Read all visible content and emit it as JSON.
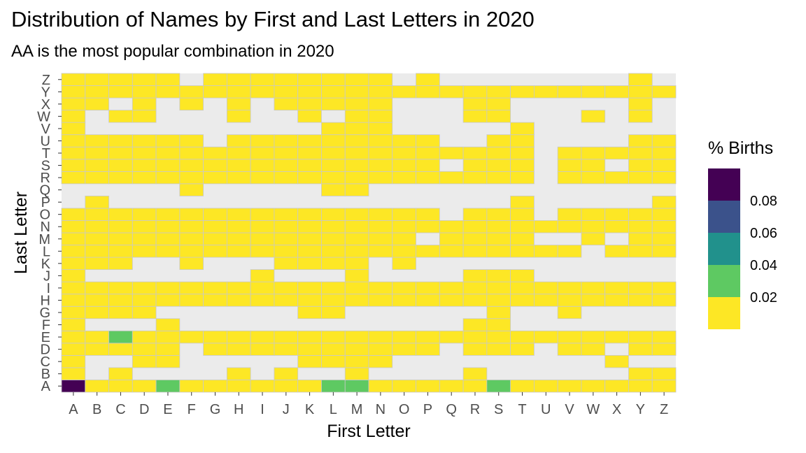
{
  "chart_data": {
    "type": "heatmap",
    "title": "Distribution of Names by First and Last Letters in 2020",
    "subtitle": "AA is the most popular combination in 2020",
    "xlabel": "First Letter",
    "ylabel": "Last Letter",
    "x_categories": [
      "A",
      "B",
      "C",
      "D",
      "E",
      "F",
      "G",
      "H",
      "I",
      "J",
      "K",
      "L",
      "M",
      "N",
      "O",
      "P",
      "Q",
      "R",
      "S",
      "T",
      "U",
      "V",
      "W",
      "X",
      "Y",
      "Z"
    ],
    "y_categories": [
      "A",
      "B",
      "C",
      "D",
      "E",
      "F",
      "G",
      "H",
      "I",
      "J",
      "K",
      "L",
      "M",
      "N",
      "O",
      "P",
      "Q",
      "R",
      "S",
      "T",
      "U",
      "V",
      "W",
      "X",
      "Y",
      "Z"
    ],
    "value_note": "Rows listed by last letter A..Z; columns by first letter A..Z; null = no data (grey panel shows through).",
    "rows": {
      "A": [
        0.095,
        0.01,
        0.01,
        0.01,
        0.025,
        0.01,
        0.01,
        0.01,
        0.01,
        0.01,
        0.01,
        0.025,
        0.025,
        0.01,
        0.01,
        0.01,
        0.01,
        0.01,
        0.025,
        0.01,
        0.01,
        0.01,
        0.01,
        0.01,
        0.01,
        0.01
      ],
      "B": [
        0.01,
        null,
        0.01,
        null,
        null,
        null,
        null,
        0.01,
        null,
        0.01,
        null,
        null,
        0.01,
        null,
        null,
        null,
        null,
        0.01,
        null,
        null,
        null,
        null,
        null,
        null,
        0.01,
        0.01
      ],
      "C": [
        0.01,
        null,
        null,
        0.01,
        0.01,
        null,
        null,
        null,
        null,
        null,
        0.01,
        0.01,
        0.01,
        0.01,
        null,
        null,
        null,
        null,
        null,
        null,
        null,
        null,
        null,
        0.01,
        null,
        null
      ],
      "D": [
        0.01,
        0.01,
        0.01,
        0.01,
        0.01,
        null,
        0.01,
        0.01,
        0.01,
        0.01,
        0.01,
        0.01,
        0.01,
        0.01,
        0.01,
        0.01,
        null,
        0.01,
        0.01,
        0.01,
        null,
        0.01,
        0.01,
        null,
        0.01,
        0.01
      ],
      "E": [
        0.01,
        0.01,
        0.025,
        0.01,
        0.01,
        0.01,
        0.01,
        0.01,
        0.01,
        0.01,
        0.01,
        0.01,
        0.01,
        0.01,
        0.01,
        0.01,
        0.01,
        0.01,
        0.01,
        0.01,
        0.01,
        0.01,
        0.01,
        0.01,
        0.01,
        0.01
      ],
      "F": [
        0.01,
        null,
        null,
        null,
        0.01,
        null,
        null,
        null,
        null,
        null,
        null,
        null,
        null,
        null,
        null,
        null,
        null,
        0.01,
        0.01,
        null,
        null,
        null,
        null,
        null,
        null,
        null
      ],
      "G": [
        0.01,
        0.01,
        0.01,
        0.01,
        null,
        null,
        null,
        null,
        null,
        null,
        0.01,
        0.01,
        null,
        null,
        null,
        null,
        null,
        null,
        0.01,
        null,
        null,
        0.01,
        null,
        null,
        null,
        null
      ],
      "H": [
        0.01,
        0.01,
        0.01,
        0.01,
        0.01,
        0.01,
        0.01,
        0.01,
        0.01,
        0.01,
        0.01,
        0.01,
        0.01,
        0.01,
        0.01,
        0.01,
        0.01,
        0.01,
        0.01,
        0.01,
        0.01,
        0.01,
        0.01,
        0.01,
        0.01,
        0.01
      ],
      "I": [
        0.01,
        0.01,
        0.01,
        0.01,
        0.01,
        0.01,
        0.01,
        0.01,
        0.01,
        0.01,
        0.01,
        0.01,
        0.01,
        0.01,
        0.01,
        0.01,
        0.01,
        0.01,
        0.01,
        0.01,
        0.01,
        0.01,
        0.01,
        0.01,
        0.01,
        0.01
      ],
      "J": [
        0.01,
        null,
        null,
        null,
        null,
        null,
        null,
        null,
        0.01,
        null,
        null,
        null,
        0.01,
        null,
        null,
        null,
        null,
        0.01,
        0.01,
        0.01,
        null,
        null,
        null,
        null,
        null,
        null
      ],
      "K": [
        0.01,
        0.01,
        0.01,
        null,
        null,
        0.01,
        null,
        null,
        null,
        0.01,
        0.01,
        0.01,
        0.01,
        null,
        0.01,
        null,
        null,
        null,
        null,
        null,
        null,
        null,
        null,
        null,
        null,
        null
      ],
      "L": [
        0.01,
        0.01,
        0.01,
        0.01,
        0.01,
        0.01,
        0.01,
        0.01,
        0.01,
        0.01,
        0.01,
        0.01,
        0.01,
        0.01,
        0.01,
        0.01,
        0.01,
        0.01,
        0.01,
        0.01,
        0.01,
        0.01,
        null,
        0.01,
        0.01,
        0.01
      ],
      "M": [
        0.01,
        0.01,
        0.01,
        0.01,
        0.01,
        0.01,
        0.01,
        0.01,
        0.01,
        0.01,
        0.01,
        0.01,
        0.01,
        0.01,
        0.01,
        null,
        0.01,
        0.01,
        0.01,
        0.01,
        null,
        null,
        0.01,
        null,
        0.01,
        0.01
      ],
      "N": [
        0.01,
        0.01,
        0.01,
        0.01,
        0.01,
        0.01,
        0.01,
        0.01,
        0.01,
        0.01,
        0.01,
        0.01,
        0.01,
        0.01,
        0.01,
        0.01,
        0.01,
        0.01,
        0.01,
        0.01,
        0.01,
        0.01,
        0.01,
        0.01,
        0.01,
        0.01
      ],
      "O": [
        0.01,
        0.01,
        0.01,
        0.01,
        0.01,
        0.01,
        0.01,
        0.01,
        0.01,
        0.01,
        0.01,
        0.01,
        0.01,
        0.01,
        0.01,
        0.01,
        null,
        0.01,
        0.01,
        0.01,
        null,
        0.01,
        0.01,
        0.01,
        0.01,
        0.01
      ],
      "P": [
        null,
        0.01,
        null,
        null,
        null,
        null,
        null,
        null,
        null,
        null,
        null,
        null,
        null,
        null,
        null,
        null,
        null,
        null,
        null,
        0.01,
        null,
        null,
        null,
        null,
        null,
        0.01
      ],
      "Q": [
        null,
        null,
        null,
        null,
        null,
        0.01,
        null,
        null,
        null,
        null,
        null,
        0.01,
        0.01,
        null,
        null,
        null,
        null,
        null,
        null,
        null,
        null,
        null,
        null,
        null,
        null,
        null
      ],
      "R": [
        0.01,
        0.01,
        0.01,
        0.01,
        0.01,
        0.01,
        0.01,
        0.01,
        0.01,
        0.01,
        0.01,
        0.01,
        0.01,
        0.01,
        0.01,
        0.01,
        0.01,
        0.01,
        0.01,
        0.01,
        null,
        0.01,
        0.01,
        0.01,
        0.01,
        0.01
      ],
      "S": [
        0.01,
        0.01,
        0.01,
        0.01,
        0.01,
        0.01,
        0.01,
        0.01,
        0.01,
        0.01,
        0.01,
        0.01,
        0.01,
        0.01,
        0.01,
        0.01,
        null,
        0.01,
        0.01,
        0.01,
        null,
        0.01,
        0.01,
        null,
        0.01,
        0.01
      ],
      "T": [
        0.01,
        0.01,
        0.01,
        0.01,
        0.01,
        0.01,
        0.01,
        0.01,
        0.01,
        0.01,
        0.01,
        0.01,
        0.01,
        0.01,
        0.01,
        0.01,
        0.01,
        0.01,
        0.01,
        0.01,
        null,
        0.01,
        0.01,
        0.01,
        0.01,
        0.01
      ],
      "U": [
        0.01,
        0.01,
        0.01,
        0.01,
        0.01,
        0.01,
        null,
        0.01,
        0.01,
        0.01,
        0.01,
        0.01,
        0.01,
        0.01,
        0.01,
        0.01,
        null,
        null,
        0.01,
        0.01,
        null,
        null,
        null,
        null,
        0.01,
        0.01
      ],
      "V": [
        0.01,
        null,
        null,
        null,
        null,
        null,
        null,
        null,
        null,
        null,
        null,
        0.01,
        0.01,
        0.01,
        null,
        null,
        null,
        null,
        null,
        0.01,
        null,
        null,
        null,
        null,
        null,
        null
      ],
      "W": [
        0.01,
        null,
        0.01,
        0.01,
        null,
        null,
        null,
        0.01,
        null,
        null,
        0.01,
        null,
        0.01,
        0.01,
        null,
        null,
        null,
        0.01,
        0.01,
        null,
        null,
        null,
        0.01,
        null,
        0.01,
        null
      ],
      "X": [
        0.01,
        0.01,
        null,
        0.01,
        null,
        0.01,
        null,
        0.01,
        null,
        0.01,
        0.01,
        0.01,
        0.01,
        0.01,
        null,
        null,
        null,
        0.01,
        0.01,
        null,
        null,
        null,
        null,
        null,
        0.01,
        null
      ],
      "Y": [
        0.01,
        0.01,
        0.01,
        0.01,
        0.01,
        0.01,
        0.01,
        0.01,
        0.01,
        0.01,
        0.01,
        0.01,
        0.01,
        0.01,
        0.01,
        0.01,
        0.01,
        0.01,
        0.01,
        0.01,
        0.01,
        0.01,
        0.01,
        0.01,
        0.01,
        0.01
      ],
      "Z": [
        0.01,
        0.01,
        0.01,
        0.01,
        0.01,
        null,
        0.01,
        0.01,
        0.01,
        0.01,
        0.01,
        0.01,
        0.01,
        0.01,
        null,
        0.01,
        null,
        null,
        null,
        null,
        null,
        null,
        null,
        null,
        0.01,
        null
      ]
    },
    "legend": {
      "title": "% Births",
      "ticks": [
        "0.08",
        "0.06",
        "0.04",
        "0.02"
      ],
      "colors": [
        "#440154",
        "#3b528b",
        "#21918c",
        "#5ec962",
        "#fde725"
      ]
    },
    "panel_color": "#ebebeb",
    "grid": false
  }
}
